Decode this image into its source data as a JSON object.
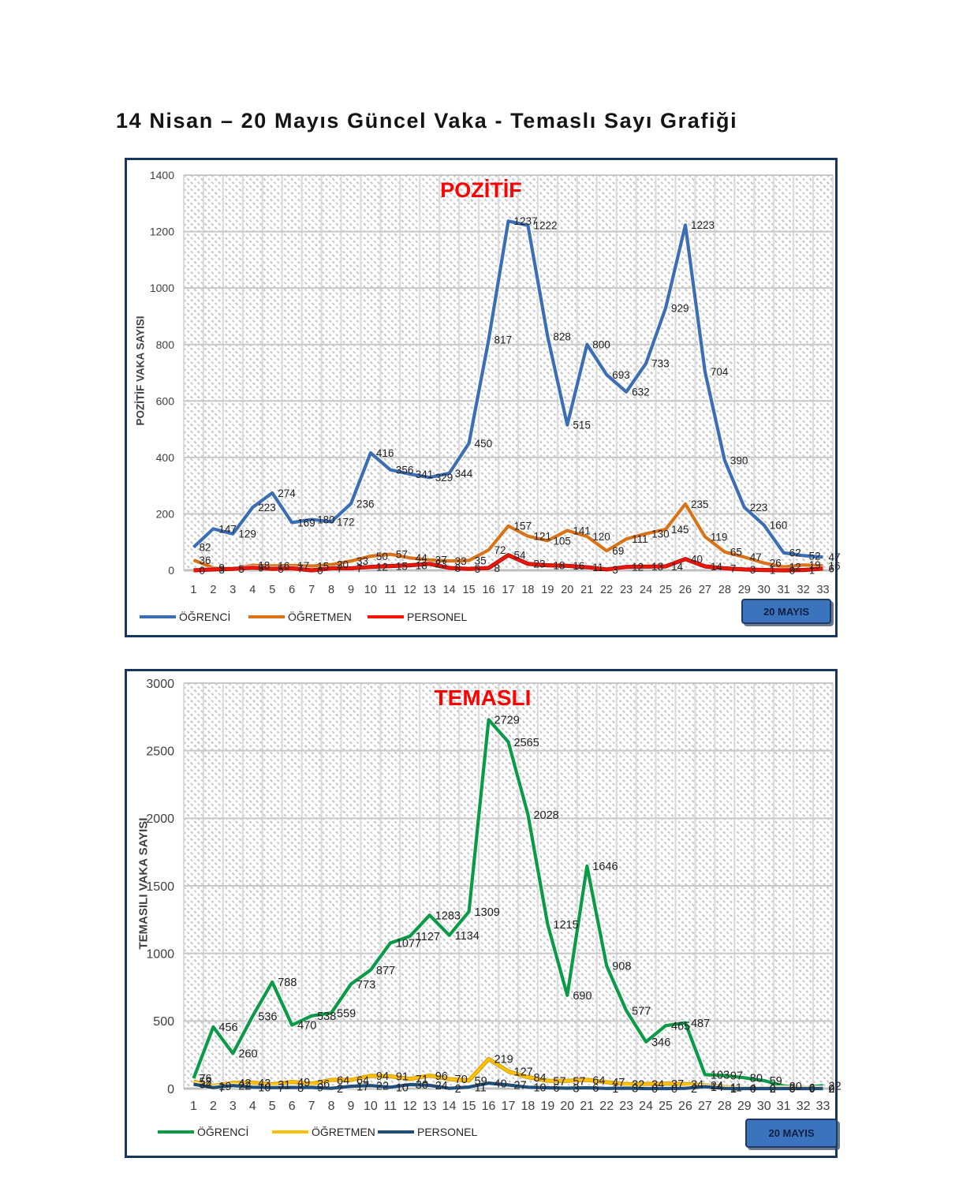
{
  "page_title": "14 Nisan – 20 Mayıs Güncel Vaka - Temaslı Sayı Grafiği",
  "button_label": "20 MAYIS",
  "chart_data": [
    {
      "type": "line",
      "title": "POZİTİF",
      "ylabel": "POZİTİF VAKA SAYISI",
      "xlabel": "",
      "categories": [
        1,
        2,
        3,
        4,
        5,
        6,
        7,
        8,
        9,
        10,
        11,
        12,
        13,
        14,
        15,
        16,
        17,
        18,
        19,
        20,
        21,
        22,
        23,
        24,
        25,
        26,
        27,
        28,
        29,
        30,
        31,
        32,
        33
      ],
      "ylim": [
        0,
        1400
      ],
      "ystep": 200,
      "grid": true,
      "legend_position": "bottom",
      "button": "20 MAYIS",
      "series": [
        {
          "name": "ÖĞRENCİ",
          "color": "#3C6EB5",
          "values": [
            82,
            147,
            129,
            223,
            274,
            169,
            180,
            172,
            236,
            416,
            356,
            341,
            329,
            344,
            450,
            817,
            1237,
            1222,
            828,
            515,
            800,
            693,
            632,
            733,
            929,
            1223,
            704,
            390,
            223,
            160,
            62,
            52,
            47
          ]
        },
        {
          "name": "ÖĞRETMEN",
          "color": "#D9731A",
          "values": [
            36,
            9,
            5,
            18,
            16,
            17,
            15,
            20,
            33,
            50,
            57,
            44,
            37,
            33,
            35,
            72,
            157,
            121,
            105,
            141,
            120,
            69,
            111,
            130,
            145,
            235,
            119,
            65,
            47,
            26,
            12,
            19,
            16
          ]
        },
        {
          "name": "PERSONEL",
          "color": "#F01505",
          "edge": "#A31111",
          "values": [
            0,
            3,
            5,
            9,
            5,
            7,
            0,
            7,
            7,
            12,
            15,
            18,
            23,
            8,
            5,
            8,
            54,
            23,
            18,
            16,
            11,
            3,
            12,
            13,
            14,
            40,
            14,
            7,
            3,
            1,
            0,
            1,
            6
          ]
        }
      ]
    },
    {
      "type": "line",
      "title": "TEMASLI",
      "ylabel": "TEMASILI VAKA SAYISI",
      "xlabel": "",
      "categories": [
        1,
        2,
        3,
        4,
        5,
        6,
        7,
        8,
        9,
        10,
        11,
        12,
        13,
        14,
        15,
        16,
        17,
        18,
        19,
        20,
        21,
        22,
        23,
        24,
        25,
        26,
        27,
        28,
        29,
        30,
        31,
        32,
        33
      ],
      "ylim": [
        0,
        3000
      ],
      "ystep": 500,
      "grid": true,
      "legend_position": "bottom",
      "button": "20 MAYIS",
      "series": [
        {
          "name": "ÖĞRENCİ",
          "color": "#0B9B47",
          "values": [
            76,
            456,
            260,
            536,
            788,
            470,
            538,
            559,
            773,
            877,
            1077,
            1127,
            1283,
            1134,
            1309,
            2729,
            2565,
            2028,
            1215,
            690,
            1646,
            908,
            577,
            346,
            465,
            487,
            103,
            97,
            80,
            59,
            20,
            6,
            22
          ]
        },
        {
          "name": "ÖĞRETMEN",
          "color": "#FFC103",
          "edge": "#D29500",
          "values": [
            52,
            19,
            42,
            43,
            31,
            49,
            36,
            64,
            64,
            94,
            91,
            71,
            96,
            70,
            59,
            219,
            127,
            84,
            57,
            57,
            64,
            47,
            32,
            34,
            37,
            34,
            24,
            11,
            4,
            2,
            5,
            6,
            2
          ]
        },
        {
          "name": "PERSONEL",
          "color": "#1F4E79",
          "values": [
            32,
            7,
            22,
            10,
            7,
            8,
            9,
            2,
            17,
            22,
            10,
            30,
            24,
            2,
            11,
            40,
            27,
            10,
            6,
            3,
            6,
            1,
            3,
            0,
            0,
            2,
            14,
            1,
            0,
            0,
            0,
            0,
            0
          ]
        }
      ]
    }
  ],
  "colors": {
    "chart_border": "#17375E",
    "grid_h": "#c8c8c8",
    "grid_v": "#dcdcdc",
    "axis": "#bfbfbf",
    "tick_text": "#3f3f3f",
    "label_text": "#212121",
    "title_red": "#FF0000",
    "button_fill": "#3B74BC",
    "button_border": "#1F3864"
  }
}
